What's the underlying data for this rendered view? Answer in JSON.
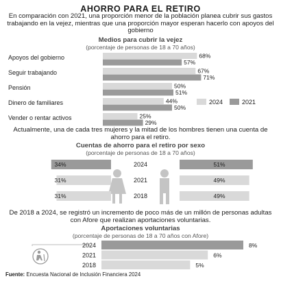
{
  "header": {
    "title": "AHORRO PARA EL RETIRO",
    "intro": "En comparación con 2021, una proporción menor de la población planea cubrir sus gastos trabajando en la vejez, mientras que una proporción mayor esperan hacerlo con apoyos del gobierno"
  },
  "section1": {
    "title": "Medios para cubrir la vejez",
    "note": "(porcentaje de personas de 18 a 70 años)"
  },
  "section2": {
    "intro": "Actualmente, una de cada tres mujeres y la mitad de los hombres tienen una cuenta de ahorro para el retiro.",
    "title": "Cuentas de ahorro para el retiro por sexo",
    "note": "(porcentaje de personas de 18 a 70 años)"
  },
  "section3": {
    "intro": "De 2018 a 2024, se registró un incremento de poco más de un millón de personas adultas con Afore que realizan aportaciones voluntarias.",
    "title": "Aportaciones voluntarias",
    "note": "(porcentaje de personas de 18 a 70 años con Afore)"
  },
  "footer": {
    "source_label": "Fuente:",
    "source_text": "Encuesta Nacional de Inclusión Financiera 2024"
  },
  "colors": {
    "light": "#d9d9d9",
    "dark": "#9a9a9a",
    "figure": "#c4c4c4"
  },
  "icons": {
    "women": "woman-figure-icon",
    "men": "man-figure-icon",
    "elderly": "elderly-person-icon"
  },
  "chart_data": [
    {
      "type": "bar",
      "orientation": "horizontal",
      "title": "Medios para cubrir la vejez",
      "subtitle": "(porcentaje de personas de 18 a 70 años)",
      "categories": [
        "Apoyos del gobierno",
        "Seguir trabajando",
        "Pensión",
        "Dinero de familiares",
        "Vender o rentar activos"
      ],
      "series": [
        {
          "name": "2024",
          "values": [
            68,
            67,
            50,
            44,
            25
          ],
          "labels": [
            "68%",
            "67%",
            "50%",
            "44%",
            "25%"
          ]
        },
        {
          "name": "2021",
          "values": [
            57,
            71,
            51,
            50,
            29
          ],
          "labels": [
            "57%",
            "71%",
            "51%",
            "50%",
            "29%"
          ]
        }
      ],
      "legend": "bottom-right"
    },
    {
      "type": "bar",
      "orientation": "horizontal",
      "title": "Cuentas de ahorro para el retiro por sexo",
      "subtitle": "(porcentaje de personas de 18 a 70 años)",
      "categories": [
        "2024",
        "2021",
        "2018"
      ],
      "series": [
        {
          "values": [
            34,
            31,
            31
          ],
          "labels": [
            "34%",
            "31%",
            "31%"
          ]
        },
        {
          "values": [
            51,
            49,
            49
          ],
          "labels": [
            "51%",
            "49%",
            "49%"
          ]
        }
      ]
    },
    {
      "type": "bar",
      "orientation": "horizontal",
      "title": "Aportaciones voluntarias",
      "subtitle": "(porcentaje de personas de 18 a 70 años con Afore)",
      "categories": [
        "2024",
        "2021",
        "2018"
      ],
      "values": [
        8,
        6,
        5
      ],
      "labels": [
        "8%",
        "6%",
        "5%"
      ]
    }
  ]
}
